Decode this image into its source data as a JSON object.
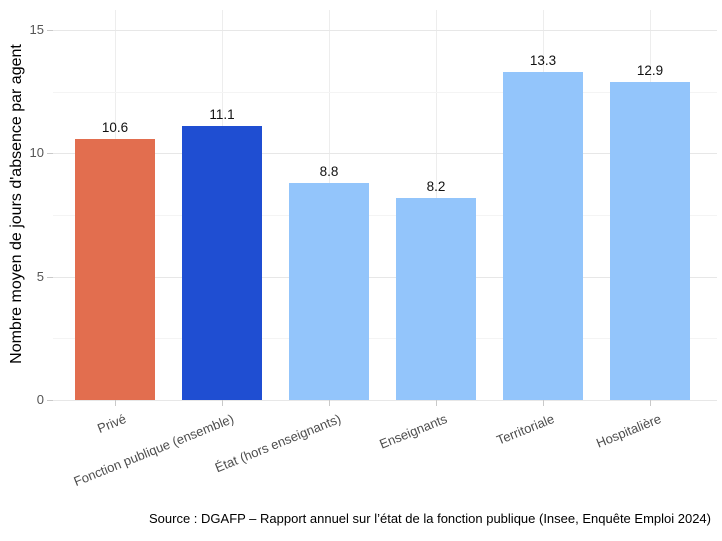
{
  "chart_data": {
    "type": "bar",
    "title": "",
    "xlabel": "",
    "ylabel": "Nombre moyen de jours d'absence par agent",
    "categories": [
      "Privé",
      "Fonction publique (ensemble)",
      "État (hors enseignants)",
      "Enseignants",
      "Territoriale",
      "Hospitalière"
    ],
    "values": [
      10.6,
      11.1,
      8.8,
      8.2,
      13.3,
      12.9
    ],
    "value_labels": [
      "10.6",
      "11.1",
      "8.8",
      "8.2",
      "13.3",
      "12.9"
    ],
    "bar_colors": [
      "#E26E4F",
      "#1F4ED2",
      "#93C5FB",
      "#93C5FB",
      "#93C5FB",
      "#93C5FB"
    ],
    "ylim": [
      0,
      15
    ],
    "yticks": [
      0,
      5,
      10,
      15
    ],
    "yticks_minor": [
      2.5,
      7.5,
      12.5
    ],
    "grid": "major-and-minor-horizontal, major-vertical-at-categories",
    "legend_position": "none"
  },
  "caption": "Source : DGAFP – Rapport annuel sur l’état de la fonction publique (Insee, Enquête Emploi 2024)",
  "colors": {
    "bar_private": "#E26E4F",
    "bar_public_ensemble": "#1F4ED2",
    "bar_default": "#93C5FB",
    "grid_major": "#E7E7E7",
    "grid_minor": "#F4F4F4",
    "grid_vertical": "#EDEDED",
    "axis_text": "#4D4D4D",
    "tick_mark": "#C9C9C9",
    "background": "#FFFFFF"
  }
}
